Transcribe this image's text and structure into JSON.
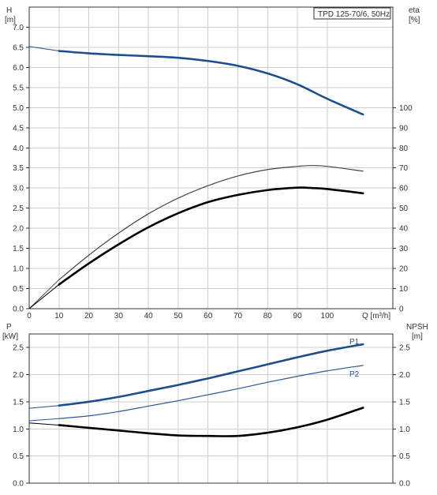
{
  "chart_data": [
    {
      "type": "line",
      "title": "TPD 125-70/6, 50Hz",
      "xlabel": "Q [m³/h]",
      "y_left_label": [
        "H",
        "[m]"
      ],
      "y_right_label": [
        "eta",
        "[%]"
      ],
      "xlim": [
        0,
        122
      ],
      "x_ticks": [
        0,
        10,
        20,
        30,
        40,
        50,
        60,
        70,
        80,
        90,
        100
      ],
      "y_left_lim": [
        0,
        7.5
      ],
      "y_left_ticks": [
        "0.0",
        "0.5",
        "1.0",
        "1.5",
        "2.0",
        "2.5",
        "3.0",
        "3.5",
        "4.0",
        "4.5",
        "5.0",
        "5.5",
        "6.0",
        "6.5",
        "7.0"
      ],
      "y_right_lim": [
        0,
        150
      ],
      "y_right_ticks": [
        "0",
        "10",
        "20",
        "30",
        "40",
        "50",
        "60",
        "70",
        "80",
        "90",
        "100"
      ],
      "grid": true,
      "series": [
        {
          "axis": "left",
          "color": "#1f4e8c",
          "points": [
            [
              0,
              6.52
            ],
            [
              10,
              6.41
            ],
            [
              20,
              6.35
            ],
            [
              30,
              6.31
            ],
            [
              40,
              6.28
            ],
            [
              50,
              6.24
            ],
            [
              60,
              6.16
            ],
            [
              70,
              6.04
            ],
            [
              80,
              5.85
            ],
            [
              90,
              5.58
            ],
            [
              100,
              5.22
            ],
            [
              112,
              4.83
            ]
          ]
        },
        {
          "axis": "left",
          "color": "#444444",
          "points": [
            [
              0,
              0.0
            ],
            [
              10,
              0.72
            ],
            [
              20,
              1.33
            ],
            [
              30,
              1.88
            ],
            [
              40,
              2.36
            ],
            [
              50,
              2.75
            ],
            [
              60,
              3.06
            ],
            [
              70,
              3.3
            ],
            [
              80,
              3.46
            ],
            [
              90,
              3.54
            ],
            [
              95,
              3.56
            ],
            [
              100,
              3.54
            ],
            [
              112,
              3.42
            ]
          ]
        },
        {
          "axis": "right",
          "color": "#000000",
          "points": [
            [
              0,
              0
            ],
            [
              10,
              12
            ],
            [
              20,
              22.5
            ],
            [
              30,
              32
            ],
            [
              40,
              40.5
            ],
            [
              50,
              47.5
            ],
            [
              60,
              53
            ],
            [
              70,
              56.6
            ],
            [
              80,
              59
            ],
            [
              90,
              60.2
            ],
            [
              95,
              60
            ],
            [
              100,
              59.5
            ],
            [
              112,
              57.4
            ]
          ]
        }
      ]
    },
    {
      "type": "line",
      "y_left_label": [
        "P",
        "[kW]"
      ],
      "y_right_label": [
        "NPSH",
        "[m]"
      ],
      "xlim": [
        0,
        122
      ],
      "x_ticks": [
        0,
        10,
        20,
        30,
        40,
        50,
        60,
        70,
        80,
        90,
        100
      ],
      "y_left_lim": [
        0,
        2.75
      ],
      "y_left_ticks": [
        "0.0",
        "0.5",
        "1.0",
        "1.5",
        "2.0",
        "2.5"
      ],
      "y_right_lim": [
        0,
        2.75
      ],
      "y_right_ticks": [
        "0.0",
        "0.5",
        "1.0",
        "1.5",
        "2.0",
        "2.5"
      ],
      "grid": true,
      "series": [
        {
          "name": "P1",
          "axis": "left",
          "color": "#1f4e8c",
          "points": [
            [
              0,
              1.38
            ],
            [
              10,
              1.43
            ],
            [
              20,
              1.5
            ],
            [
              30,
              1.59
            ],
            [
              40,
              1.7
            ],
            [
              50,
              1.81
            ],
            [
              60,
              1.93
            ],
            [
              70,
              2.06
            ],
            [
              80,
              2.19
            ],
            [
              90,
              2.32
            ],
            [
              100,
              2.44
            ],
            [
              112,
              2.56
            ]
          ]
        },
        {
          "name": "P2",
          "axis": "left",
          "color": "#2a5a9a",
          "points": [
            [
              0,
              1.15
            ],
            [
              10,
              1.19
            ],
            [
              20,
              1.24
            ],
            [
              30,
              1.32
            ],
            [
              40,
              1.42
            ],
            [
              50,
              1.52
            ],
            [
              60,
              1.63
            ],
            [
              70,
              1.74
            ],
            [
              80,
              1.86
            ],
            [
              90,
              1.97
            ],
            [
              100,
              2.07
            ],
            [
              112,
              2.17
            ]
          ]
        },
        {
          "axis": "right",
          "color": "#000000",
          "points": [
            [
              0,
              1.11
            ],
            [
              10,
              1.07
            ],
            [
              20,
              1.02
            ],
            [
              30,
              0.97
            ],
            [
              40,
              0.92
            ],
            [
              50,
              0.88
            ],
            [
              60,
              0.87
            ],
            [
              70,
              0.87
            ],
            [
              80,
              0.93
            ],
            [
              90,
              1.03
            ],
            [
              100,
              1.17
            ],
            [
              112,
              1.39
            ]
          ]
        }
      ]
    }
  ]
}
